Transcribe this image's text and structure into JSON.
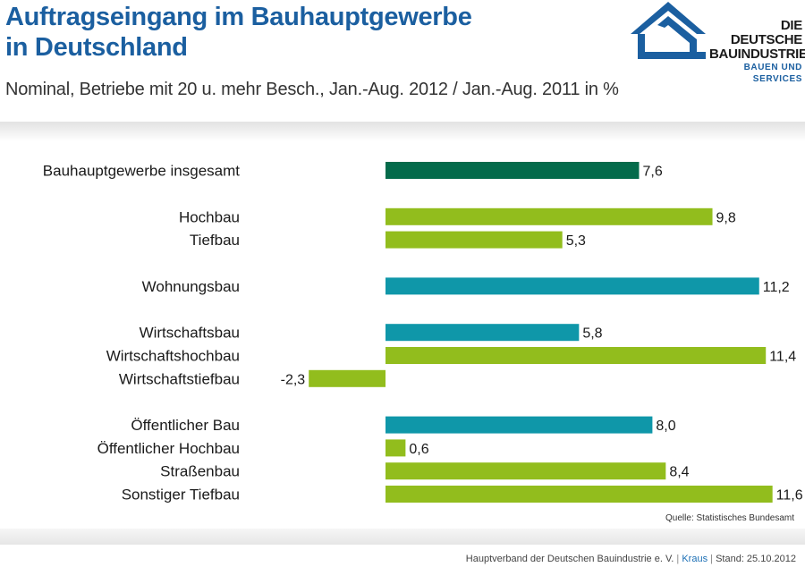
{
  "header": {
    "title_line1": "Auftragseingang im Bauhauptgewerbe",
    "title_line2": "in Deutschland",
    "subtitle": "Nominal, Betriebe mit 20 u. mehr Besch., Jan.-Aug. 2012 / Jan.-Aug. 2011 in %"
  },
  "logo": {
    "line1": "DIE DEUTSCHE",
    "line2": "BAUINDUSTRIE",
    "line3": "BAUEN UND SERVICES",
    "icon": "house-roof-icon"
  },
  "colors": {
    "total": "#046b4b",
    "lime": "#92bd1d",
    "teal": "#0f97a9",
    "brand_blue": "#1b5fa0"
  },
  "chart_data": {
    "type": "bar",
    "orientation": "horizontal",
    "categories": [
      "Bauhauptgewerbe insgesamt",
      "Hochbau",
      "Tiefbau",
      "Wohnungsbau",
      "Wirtschaftsbau",
      "Wirtschaftshochbau",
      "Wirtschaftstiefbau",
      "Öffentlicher Bau",
      "Öffentlicher Hochbau",
      "Straßenbau",
      "Sonstiger Tiefbau"
    ],
    "values": [
      7.6,
      9.8,
      5.3,
      11.2,
      5.8,
      11.4,
      -2.3,
      8.0,
      0.6,
      8.4,
      11.6
    ],
    "value_labels": [
      "7,6",
      "9,8",
      "5,3",
      "11,2",
      "5,8",
      "11,4",
      "-2,3",
      "8,0",
      "0,6",
      "8,4",
      "11,6"
    ],
    "bar_colors": [
      "total",
      "lime",
      "lime",
      "teal",
      "teal",
      "lime",
      "lime",
      "teal",
      "lime",
      "lime",
      "lime"
    ],
    "groups": [
      [
        0
      ],
      [
        1,
        2
      ],
      [
        3
      ],
      [
        4,
        5,
        6
      ],
      [
        7,
        8,
        9,
        10
      ]
    ],
    "xlim": [
      -2.3,
      11.6
    ],
    "grid": false,
    "title": "",
    "xlabel": "",
    "ylabel": ""
  },
  "source": "Quelle: Statistisches Bundesamt",
  "footer": {
    "org": "Hauptverband der Deutschen Bauindustrie e. V.",
    "sep1": "|",
    "author": "Kraus",
    "sep2": "|",
    "date": "Stand: 25.10.2012"
  }
}
